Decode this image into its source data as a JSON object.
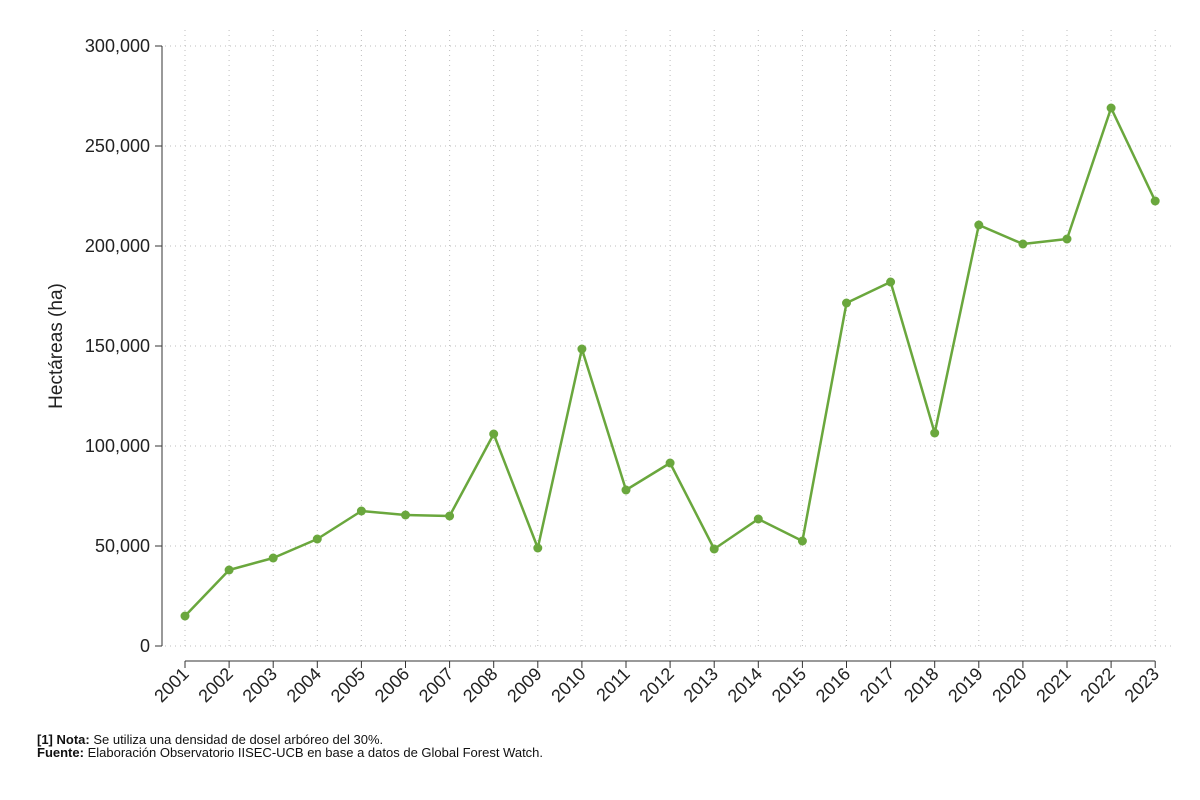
{
  "chart_data": {
    "type": "line",
    "ylabel": "Hectáreas (ha)",
    "ylim": [
      0,
      300000
    ],
    "yticks": [
      0,
      50000,
      100000,
      150000,
      200000,
      250000,
      300000
    ],
    "ytick_labels": [
      "0",
      "50,000",
      "100,000",
      "150,000",
      "200,000",
      "250,000",
      "300,000"
    ],
    "categories": [
      "2001",
      "2002",
      "2003",
      "2004",
      "2005",
      "2006",
      "2007",
      "2008",
      "2009",
      "2010",
      "2011",
      "2012",
      "2013",
      "2014",
      "2015",
      "2016",
      "2017",
      "2018",
      "2019",
      "2020",
      "2021",
      "2022",
      "2023"
    ],
    "values": [
      15000,
      38000,
      44000,
      53500,
      67500,
      65500,
      65000,
      106000,
      49000,
      148500,
      78000,
      91500,
      48500,
      63500,
      52500,
      171500,
      182000,
      106500,
      210500,
      201000,
      203500,
      269000,
      222500
    ],
    "grid": true,
    "line_color": "#6aa73d"
  },
  "notes": {
    "note_label": "[1] Nota:",
    "note_text": " Se utiliza una densidad de dosel arbóreo del 30%.",
    "source_label": "Fuente:",
    "source_text": " Elaboración Observatorio IISEC-UCB en base a datos de Global Forest Watch."
  }
}
